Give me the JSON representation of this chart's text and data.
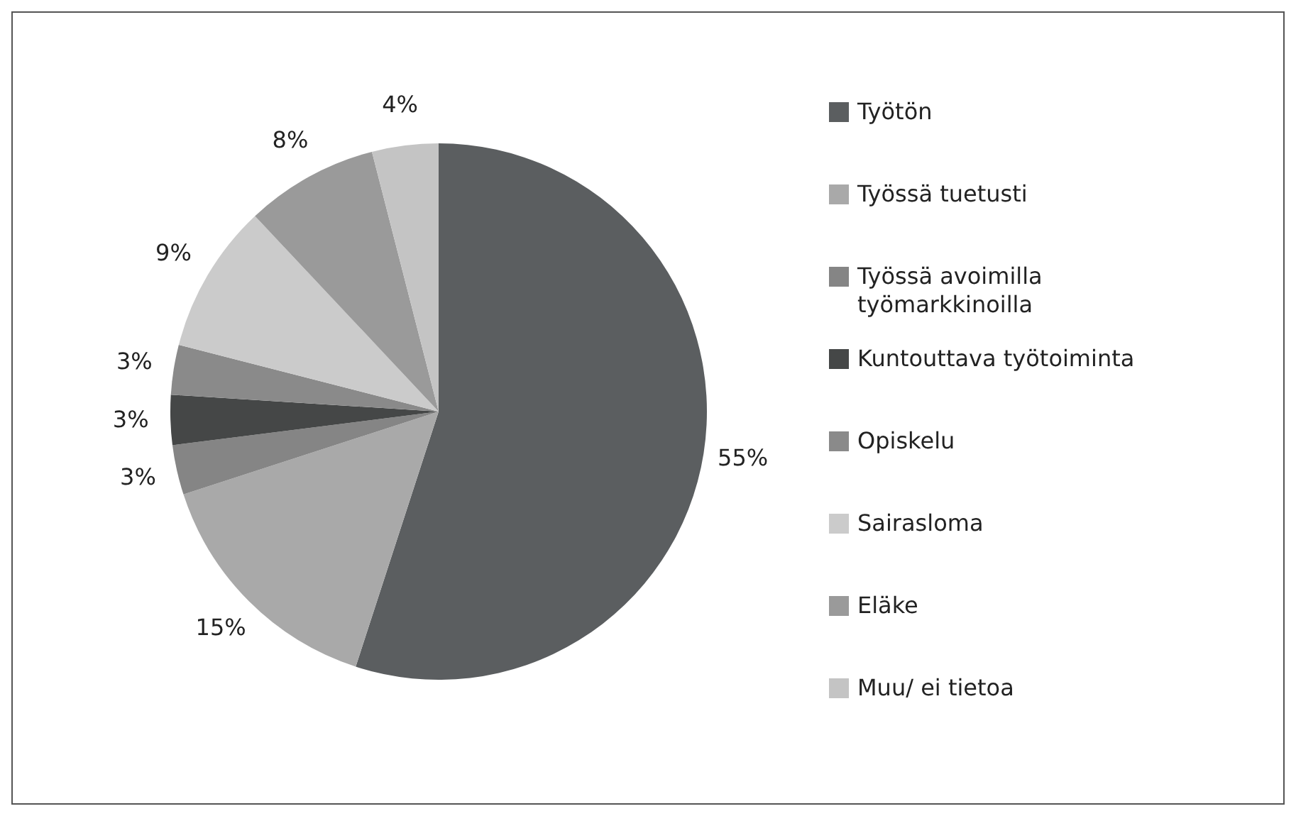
{
  "chart_data": {
    "type": "pie",
    "categories": [
      "Työtön",
      "Työssä tuetusti",
      "Työssä avoimilla työmarkkinoilla",
      "Kuntouttava työtoiminta",
      "Opiskelu",
      "Sairasloma",
      "Eläke",
      "Muu/ ei tietoa"
    ],
    "values": [
      55,
      15,
      3,
      3,
      3,
      9,
      8,
      4
    ],
    "value_labels": [
      "55%",
      "15%",
      "3%",
      "3%",
      "3%",
      "9%",
      "8%",
      "4%"
    ],
    "colors": [
      "#5b5e60",
      "#a9a9a9",
      "#858585",
      "#454747",
      "#8a8a8a",
      "#cbcbcb",
      "#9a9a9a",
      "#c4c4c4"
    ],
    "legend": "right"
  }
}
